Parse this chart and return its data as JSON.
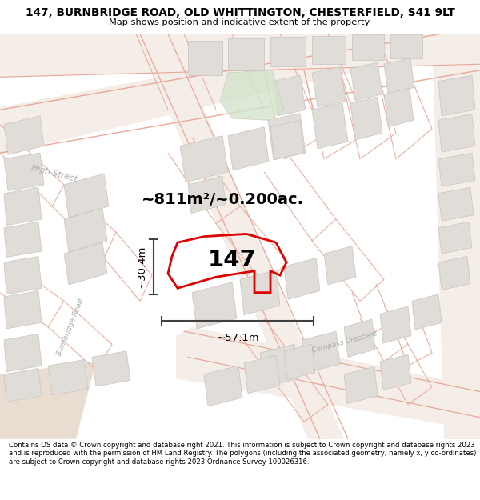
{
  "title": "147, BURNBRIDGE ROAD, OLD WHITTINGTON, CHESTERFIELD, S41 9LT",
  "subtitle": "Map shows position and indicative extent of the property.",
  "footer": "Contains OS data © Crown copyright and database right 2021. This information is subject to Crown copyright and database rights 2023 and is reproduced with the permission of HM Land Registry. The polygons (including the associated geometry, namely x, y co-ordinates) are subject to Crown copyright and database rights 2023 Ordnance Survey 100026316.",
  "area_label": "~811m²/~0.200ac.",
  "width_label": "~57.1m",
  "height_label": "~30.4m",
  "number_label": "147",
  "map_bg": "#ffffff",
  "block_color": "#e0ddd8",
  "block_edge": "#c8c4be",
  "road_fill": "#f5ede8",
  "road_line_color": "#e8a898",
  "highlight_color": "#dd0000",
  "dim_line_color": "#404040",
  "green_patch_color": "#d4e4cc",
  "street_label_color": "#aaaaaa",
  "tan_corner": "#e8ddd0"
}
